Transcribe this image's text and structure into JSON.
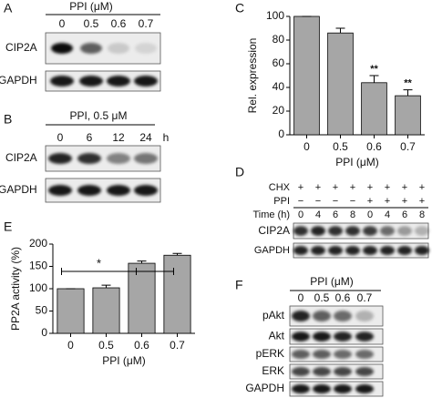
{
  "panel_labels": [
    "A",
    "B",
    "C",
    "D",
    "E",
    "F"
  ],
  "blot_a": {
    "header": "PPI (μM)",
    "lanes": [
      "0",
      "0.5",
      "0.6",
      "0.7"
    ],
    "rows": [
      "CIP2A",
      "GAPDH"
    ]
  },
  "blot_b": {
    "header": "PPI, 0.5 μM",
    "lanes": [
      "0",
      "6",
      "12",
      "24"
    ],
    "unit": "h",
    "rows": [
      "CIP2A",
      "GAPDH"
    ]
  },
  "blot_d": {
    "conditions": [
      {
        "label": "CHX",
        "marks": [
          "+",
          "+",
          "+",
          "+",
          "+",
          "+",
          "+",
          "+"
        ]
      },
      {
        "label": "PPI",
        "marks": [
          "−",
          "−",
          "−",
          "−",
          "+",
          "+",
          "+",
          "+"
        ]
      },
      {
        "label": "Time (h)",
        "marks": [
          "0",
          "4",
          "6",
          "8",
          "0",
          "4",
          "6",
          "8"
        ]
      }
    ],
    "rows": [
      "CIP2A",
      "GAPDH"
    ]
  },
  "blot_f": {
    "header": "PPI (μM)",
    "lanes": [
      "0",
      "0.5",
      "0.6",
      "0.7"
    ],
    "rows": [
      "pAkt",
      "Akt",
      "pERK",
      "ERK",
      "GAPDH"
    ]
  },
  "chart_data": [
    {
      "type": "bar",
      "ylabel": "Rel. expression",
      "xlabel": "PPI (μM)",
      "categories": [
        "0",
        "0.5",
        "0.6",
        "0.7"
      ],
      "values": [
        100,
        86,
        44,
        33
      ],
      "errors": [
        0,
        4,
        6,
        5
      ],
      "significance": [
        null,
        null,
        "**",
        "**"
      ],
      "color": "#a6a6a6",
      "ylim": [
        0,
        100
      ],
      "yticks": [
        0,
        20,
        40,
        60,
        80,
        100
      ]
    },
    {
      "type": "bar",
      "ylabel": "PP2A activity (%)",
      "xlabel": "PPI (μM)",
      "categories": [
        "0",
        "0.5",
        "0.6",
        "0.7"
      ],
      "values": [
        100,
        102,
        157,
        175
      ],
      "errors": [
        0,
        6,
        5,
        4
      ],
      "bracket_label": "*",
      "color": "#a6a6a6",
      "ylim": [
        0,
        200
      ],
      "yticks": [
        0,
        50,
        100,
        150,
        200
      ]
    }
  ]
}
